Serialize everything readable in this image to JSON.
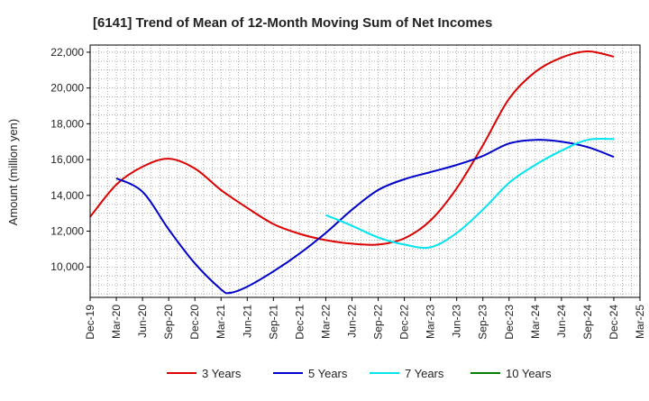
{
  "chart_data": {
    "type": "line",
    "title": "[6141]  Trend of Mean of 12-Month Moving Sum of Net Incomes",
    "ylabel": "Amount (million yen)",
    "xlabel": "",
    "x_ticks": [
      "Dec-19",
      "Mar-20",
      "Jun-20",
      "Sep-20",
      "Dec-20",
      "Mar-21",
      "Jun-21",
      "Sep-21",
      "Dec-21",
      "Mar-22",
      "Jun-22",
      "Sep-22",
      "Dec-22",
      "Mar-23",
      "Jun-23",
      "Sep-23",
      "Dec-23",
      "Mar-24",
      "Jun-24",
      "Sep-24",
      "Dec-24",
      "Mar-25"
    ],
    "y_ticks": [
      10000,
      12000,
      14000,
      16000,
      18000,
      20000,
      22000
    ],
    "y_tick_labels": [
      "10,000",
      "12,000",
      "14,000",
      "16,000",
      "18,000",
      "20,000",
      "22,000"
    ],
    "ylim": [
      8300,
      22400
    ],
    "grid": true,
    "legend_position": "bottom",
    "series": [
      {
        "name": "3 Years",
        "color": "#dd0000",
        "points": [
          [
            "Dec-19",
            12800
          ],
          [
            "Mar-20",
            14600
          ],
          [
            "Jun-20",
            15600
          ],
          [
            "Sep-20",
            16050
          ],
          [
            "Dec-20",
            15500
          ],
          [
            "Mar-21",
            14300
          ],
          [
            "Jun-21",
            13300
          ],
          [
            "Sep-21",
            12400
          ],
          [
            "Dec-21",
            11850
          ],
          [
            "Mar-22",
            11500
          ],
          [
            "Jun-22",
            11300
          ],
          [
            "Sep-22",
            11250
          ],
          [
            "Dec-22",
            11600
          ],
          [
            "Mar-23",
            12600
          ],
          [
            "Jun-23",
            14400
          ],
          [
            "Sep-23",
            16800
          ],
          [
            "Dec-23",
            19400
          ],
          [
            "Mar-24",
            20900
          ],
          [
            "Jun-24",
            21700
          ],
          [
            "Sep-24",
            22050
          ],
          [
            "Dec-24",
            21750
          ]
        ]
      },
      {
        "name": "5 Years",
        "color": "#0000cc",
        "points": [
          [
            "Mar-20",
            14950
          ],
          [
            "Jun-20",
            14200
          ],
          [
            "Sep-20",
            12100
          ],
          [
            "Dec-20",
            10200
          ],
          [
            "Mar-21",
            8750
          ],
          [
            "Apr-21",
            8550
          ],
          [
            "Jun-21",
            8900
          ],
          [
            "Sep-21",
            9750
          ],
          [
            "Dec-21",
            10750
          ],
          [
            "Mar-22",
            11900
          ],
          [
            "Jun-22",
            13200
          ],
          [
            "Sep-22",
            14300
          ],
          [
            "Dec-22",
            14900
          ],
          [
            "Mar-23",
            15300
          ],
          [
            "Jun-23",
            15700
          ],
          [
            "Sep-23",
            16200
          ],
          [
            "Dec-23",
            16900
          ],
          [
            "Mar-24",
            17100
          ],
          [
            "Jun-24",
            17000
          ],
          [
            "Sep-24",
            16700
          ],
          [
            "Dec-24",
            16150
          ]
        ]
      },
      {
        "name": "7 Years",
        "color": "#00e5ee",
        "points": [
          [
            "Mar-22",
            12900
          ],
          [
            "Jun-22",
            12300
          ],
          [
            "Sep-22",
            11650
          ],
          [
            "Dec-22",
            11250
          ],
          [
            "Mar-23",
            11100
          ],
          [
            "Jun-23",
            11900
          ],
          [
            "Sep-23",
            13200
          ],
          [
            "Dec-23",
            14700
          ],
          [
            "Mar-24",
            15700
          ],
          [
            "Jun-24",
            16500
          ],
          [
            "Sep-24",
            17100
          ],
          [
            "Dec-24",
            17150
          ]
        ]
      },
      {
        "name": "10 Years",
        "color": "#008000",
        "points": []
      }
    ]
  }
}
